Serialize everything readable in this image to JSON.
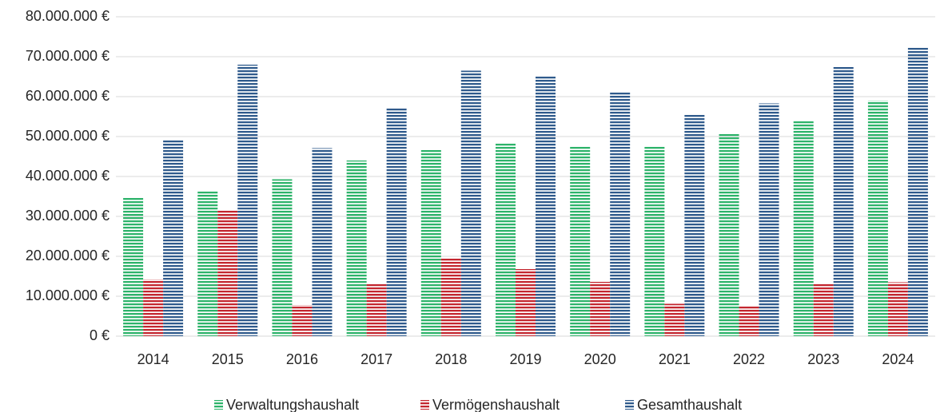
{
  "chart_data": {
    "type": "bar",
    "categories": [
      "2014",
      "2015",
      "2016",
      "2017",
      "2018",
      "2019",
      "2020",
      "2021",
      "2022",
      "2023",
      "2024"
    ],
    "series": [
      {
        "name": "Verwaltungshaushalt",
        "color": "#2db36a",
        "values": [
          34800000,
          36300000,
          39300000,
          44000000,
          46800000,
          48200000,
          47400000,
          47400000,
          50900000,
          54100000,
          59000000
        ]
      },
      {
        "name": "Vermögenshaushalt",
        "color": "#c3262f",
        "values": [
          14200000,
          31700000,
          7800000,
          13300000,
          19700000,
          16800000,
          13600000,
          8100000,
          7400000,
          13300000,
          13500000
        ]
      },
      {
        "name": "Gesamthaushalt",
        "color": "#2f5a8c",
        "values": [
          49000000,
          68000000,
          47100000,
          57300000,
          66500000,
          65000000,
          61000000,
          55500000,
          58300000,
          67400000,
          72500000
        ]
      }
    ],
    "ylim": [
      0,
      80000000
    ],
    "yticks": [
      {
        "value": 0,
        "label": "0 €"
      },
      {
        "value": 10000000,
        "label": "10.000.000 €"
      },
      {
        "value": 20000000,
        "label": "20.000.000 €"
      },
      {
        "value": 30000000,
        "label": "30.000.000 €"
      },
      {
        "value": 40000000,
        "label": "40.000.000 €"
      },
      {
        "value": 50000000,
        "label": "50.000.000 €"
      },
      {
        "value": 60000000,
        "label": "60.000.000 €"
      },
      {
        "value": 70000000,
        "label": "70.000.000 €"
      },
      {
        "value": 80000000,
        "label": "80.000.000 €"
      }
    ],
    "grid": true,
    "legend": "bottom",
    "pattern": "horizontal-stripes"
  }
}
